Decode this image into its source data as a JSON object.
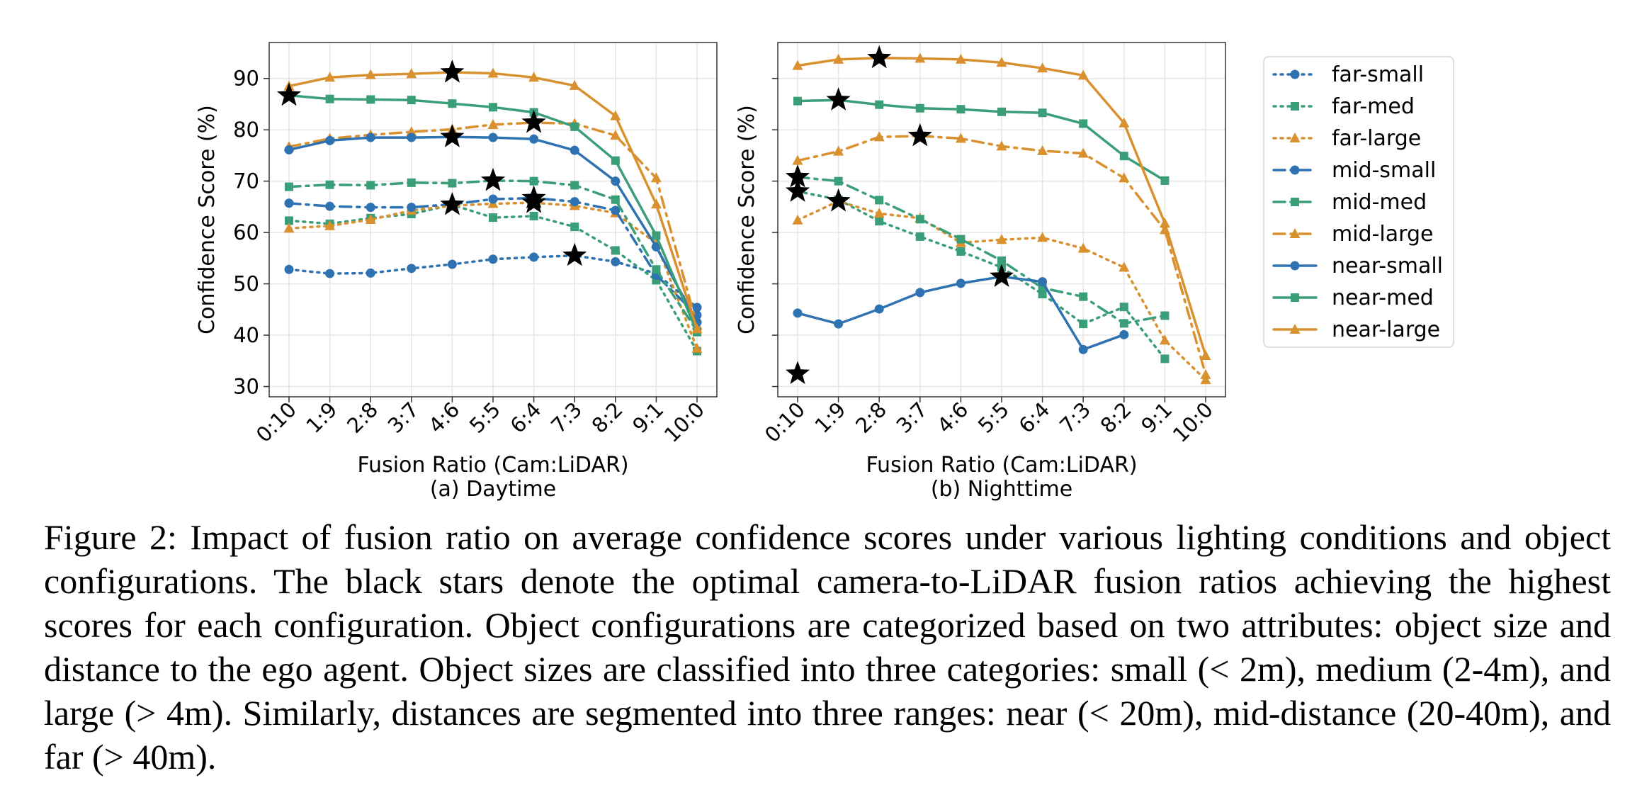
{
  "chart_data": [
    {
      "type": "line",
      "subtitle": "(a) Daytime",
      "xlabel": "Fusion Ratio (Cam:LiDAR)",
      "ylabel": "Confidence Score (%)",
      "categories": [
        "0:10",
        "1:9",
        "2:8",
        "3:7",
        "4:6",
        "5:5",
        "6:4",
        "7:3",
        "8:2",
        "9:1",
        "10:0"
      ],
      "ylim": [
        28,
        97
      ],
      "yticks": [
        30,
        40,
        50,
        60,
        70,
        80,
        90
      ],
      "grid": true,
      "series": [
        {
          "name": "far-small",
          "values": [
            52.8,
            52.0,
            52.1,
            53.0,
            53.8,
            54.8,
            55.2,
            55.5,
            54.3,
            52.0,
            45.4
          ],
          "star": 7
        },
        {
          "name": "far-med",
          "values": [
            62.3,
            61.7,
            62.8,
            63.6,
            65.4,
            62.9,
            63.2,
            61.1,
            56.5,
            50.7,
            36.9
          ],
          "star": 4
        },
        {
          "name": "far-large",
          "values": [
            60.8,
            61.3,
            62.5,
            64.3,
            65.2,
            65.6,
            65.8,
            65.2,
            63.8,
            57.9,
            37.4
          ],
          "star": 6
        },
        {
          "name": "mid-small",
          "values": [
            65.7,
            65.1,
            64.9,
            64.9,
            65.5,
            66.5,
            66.7,
            66.0,
            64.3,
            51.7,
            43.9
          ],
          "star": 6
        },
        {
          "name": "mid-med",
          "values": [
            68.9,
            69.3,
            69.2,
            69.7,
            69.6,
            70.1,
            70.0,
            69.2,
            66.4,
            52.8,
            40.8
          ],
          "star": 5
        },
        {
          "name": "mid-large",
          "values": [
            76.7,
            78.3,
            79.0,
            79.6,
            80.1,
            81.0,
            81.4,
            81.2,
            78.9,
            70.6,
            41.9
          ],
          "star": 6
        },
        {
          "name": "near-small",
          "values": [
            76.1,
            77.9,
            78.5,
            78.5,
            78.6,
            78.5,
            78.2,
            76.0,
            70.0,
            57.2,
            42.5
          ],
          "star": 4
        },
        {
          "name": "near-med",
          "values": [
            86.7,
            86.0,
            85.9,
            85.8,
            85.1,
            84.4,
            83.4,
            80.6,
            74.0,
            59.4,
            40.6
          ],
          "star": 0
        },
        {
          "name": "near-large",
          "values": [
            88.5,
            90.2,
            90.7,
            90.9,
            91.2,
            91.0,
            90.2,
            88.6,
            82.7,
            65.5,
            41.2
          ],
          "star": 4
        }
      ]
    },
    {
      "type": "line",
      "subtitle": "(b) Nighttime",
      "xlabel": "Fusion Ratio (Cam:LiDAR)",
      "ylabel": "Confidence Score (%)",
      "categories": [
        "0:10",
        "1:9",
        "2:8",
        "3:7",
        "4:6",
        "5:5",
        "6:4",
        "7:3",
        "8:2",
        "9:1",
        "10:0"
      ],
      "ylim": [
        28,
        97
      ],
      "grid": true,
      "series": [
        {
          "name": "far-small",
          "values": [
            null,
            null,
            null,
            null,
            null,
            null,
            null,
            null,
            null,
            null,
            null
          ],
          "star_value": 32.5,
          "star": 0
        },
        {
          "name": "far-med",
          "values": [
            68.0,
            66.4,
            62.2,
            59.2,
            56.3,
            53.2,
            48.0,
            42.2,
            45.5,
            35.4,
            null
          ],
          "star": 0
        },
        {
          "name": "far-large",
          "values": [
            62.4,
            66.1,
            63.7,
            62.8,
            58.0,
            58.6,
            59.0,
            56.9,
            53.2,
            39.0,
            31.3
          ],
          "star": 1
        },
        {
          "name": "mid-small",
          "values": [
            null,
            null,
            null,
            null,
            null,
            null,
            null,
            null,
            null,
            null,
            null
          ]
        },
        {
          "name": "mid-med",
          "values": [
            70.8,
            70.0,
            66.3,
            62.6,
            58.7,
            54.5,
            49.2,
            47.5,
            42.3,
            43.8,
            null
          ],
          "star": 0
        },
        {
          "name": "mid-large",
          "values": [
            74.0,
            75.8,
            78.6,
            78.8,
            78.3,
            76.8,
            75.9,
            75.4,
            70.6,
            60.5,
            32.3
          ],
          "star": 3
        },
        {
          "name": "near-small",
          "values": [
            44.3,
            42.2,
            45.1,
            48.3,
            50.1,
            51.4,
            50.4,
            37.2,
            40.1,
            null,
            null
          ],
          "star": 5
        },
        {
          "name": "near-med",
          "values": [
            85.6,
            85.8,
            84.9,
            84.2,
            84.0,
            83.5,
            83.3,
            81.2,
            74.9,
            70.1,
            null
          ],
          "star": 1
        },
        {
          "name": "near-large",
          "values": [
            92.5,
            93.7,
            94.0,
            93.9,
            93.7,
            93.1,
            92.0,
            90.6,
            81.3,
            61.8,
            36.0
          ],
          "star": 2
        }
      ]
    }
  ],
  "legend": [
    {
      "name": "far-small",
      "color": "#2e72b1",
      "dash": "dot",
      "marker": "circle"
    },
    {
      "name": "far-med",
      "color": "#3a9e78",
      "dash": "dot",
      "marker": "square"
    },
    {
      "name": "far-large",
      "color": "#d9912f",
      "dash": "dot",
      "marker": "triangle"
    },
    {
      "name": "mid-small",
      "color": "#2e72b1",
      "dash": "dashdot",
      "marker": "circle"
    },
    {
      "name": "mid-med",
      "color": "#3a9e78",
      "dash": "dashdot",
      "marker": "square"
    },
    {
      "name": "mid-large",
      "color": "#d9912f",
      "dash": "dashdot",
      "marker": "triangle"
    },
    {
      "name": "near-small",
      "color": "#2e72b1",
      "dash": "solid",
      "marker": "circle"
    },
    {
      "name": "near-med",
      "color": "#3a9e78",
      "dash": "solid",
      "marker": "square"
    },
    {
      "name": "near-large",
      "color": "#d9912f",
      "dash": "solid",
      "marker": "triangle"
    }
  ],
  "caption": "Figure 2: Impact of fusion ratio on average confidence scores under various lighting conditions and object configurations. The black stars denote the optimal camera-to-LiDAR fusion ratios achieving the highest scores for each configuration. Object configurations are categorized based on two attributes: object size and distance to the ego agent. Object sizes are classified into three categories: small (< 2m), medium (2-4m), and large (> 4m). Similarly, distances are segmented into three ranges: near (< 20m), mid-distance (20-40m), and far (> 40m)."
}
